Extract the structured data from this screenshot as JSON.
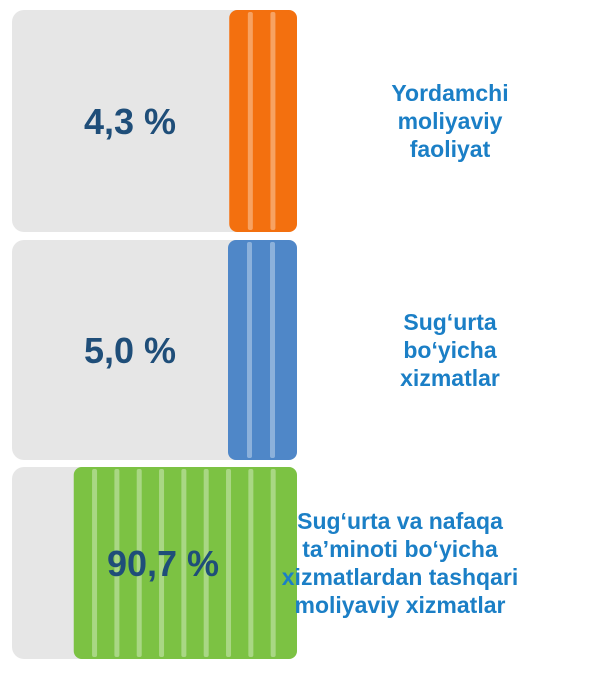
{
  "chart_data": {
    "type": "bar",
    "categories": [
      "Yordamchi moliyaviy faoliyat",
      "Sug‘urta bo‘yicha xizmatlar",
      "Sug‘urta va nafaqa ta’minoti bo‘yicha xizmatlardan tashqari moliyaviy xizmatlar"
    ],
    "values": [
      4.3,
      5.0,
      90.7
    ],
    "value_labels": [
      "4,3 %",
      "5,0 %",
      "90,7 %"
    ],
    "colors": [
      "#f3700f",
      "#4f87c8",
      "#7cc243"
    ]
  }
}
